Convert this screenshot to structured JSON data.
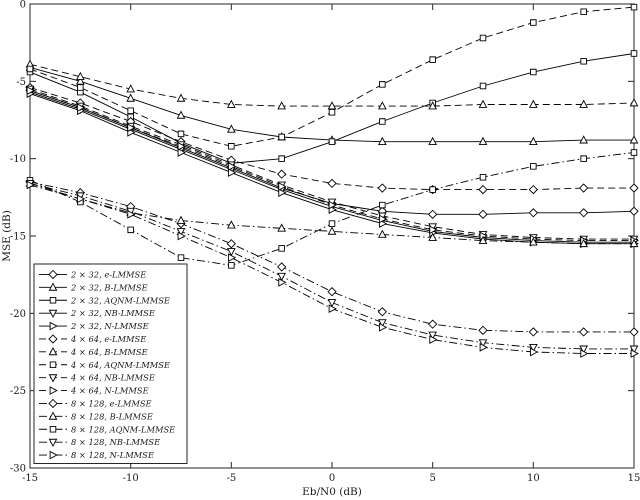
{
  "figure": {
    "background": "#ffffff",
    "axes_color": "#262626",
    "line_color": "#000000"
  },
  "chart_data": {
    "type": "line",
    "title": "",
    "xlabel": "Eb/N0 (dB)",
    "ylabel": "MSE (dB)",
    "xlim": [
      -15,
      15
    ],
    "ylim": [
      -30,
      0
    ],
    "xticks": [
      -15,
      -10,
      -5,
      0,
      5,
      10,
      15
    ],
    "yticks": [
      0,
      -5,
      -10,
      -15,
      -20,
      -25,
      -30
    ],
    "grid": false,
    "legend_position": "lower-left-inside",
    "x": [
      -15,
      -12.5,
      -10,
      -7.5,
      -5,
      -2.5,
      0,
      2.5,
      5,
      7.5,
      10,
      12.5,
      15
    ],
    "series": [
      {
        "name": "2 × 32, e-LMMSE",
        "marker": "diamond",
        "linestyle": "solid",
        "color": "#000000",
        "values": [
          -5.6,
          -6.7,
          -8.0,
          -9.3,
          -10.6,
          -11.9,
          -12.9,
          -13.4,
          -13.6,
          -13.6,
          -13.5,
          -13.5,
          -13.4
        ]
      },
      {
        "name": "2 × 32, B-LMMSE",
        "marker": "triangle-up",
        "linestyle": "solid",
        "color": "#000000",
        "values": [
          -4.1,
          -5.0,
          -6.1,
          -7.2,
          -8.1,
          -8.6,
          -8.8,
          -8.9,
          -8.9,
          -8.9,
          -8.9,
          -8.8,
          -8.8
        ]
      },
      {
        "name": "2 × 32, AQNM-LMMSE",
        "marker": "square",
        "linestyle": "solid",
        "color": "#000000",
        "values": [
          -4.4,
          -5.7,
          -7.3,
          -9.0,
          -10.3,
          -10.0,
          -8.9,
          -7.6,
          -6.4,
          -5.3,
          -4.4,
          -3.7,
          -3.2
        ]
      },
      {
        "name": "2 × 32, NB-LMMSE",
        "marker": "triangle-down",
        "linestyle": "solid",
        "color": "#000000",
        "values": [
          -5.7,
          -6.8,
          -8.1,
          -9.4,
          -10.7,
          -12.0,
          -13.1,
          -14.0,
          -14.7,
          -15.1,
          -15.3,
          -15.4,
          -15.4
        ]
      },
      {
        "name": "2 × 32, N-LMMSE",
        "marker": "triangle-right",
        "linestyle": "solid",
        "color": "#000000",
        "values": [
          -5.8,
          -6.9,
          -8.3,
          -9.6,
          -10.9,
          -12.2,
          -13.3,
          -14.2,
          -14.8,
          -15.2,
          -15.4,
          -15.5,
          -15.5
        ]
      },
      {
        "name": "4 × 64, e-LMMSE",
        "marker": "diamond",
        "linestyle": "dashed",
        "color": "#000000",
        "values": [
          -5.4,
          -6.4,
          -7.6,
          -8.9,
          -10.1,
          -11.0,
          -11.6,
          -11.9,
          -12.0,
          -12.0,
          -12.0,
          -11.9,
          -11.9
        ]
      },
      {
        "name": "4 × 64, B-LMMSE",
        "marker": "triangle-up",
        "linestyle": "dashed",
        "color": "#000000",
        "values": [
          -3.9,
          -4.7,
          -5.5,
          -6.1,
          -6.5,
          -6.6,
          -6.6,
          -6.6,
          -6.6,
          -6.5,
          -6.5,
          -6.5,
          -6.4
        ]
      },
      {
        "name": "4 × 64, AQNM-LMMSE",
        "marker": "square",
        "linestyle": "dashed",
        "color": "#000000",
        "values": [
          -4.2,
          -5.4,
          -6.9,
          -8.4,
          -9.2,
          -8.6,
          -7.0,
          -5.2,
          -3.6,
          -2.2,
          -1.2,
          -0.5,
          -0.2
        ]
      },
      {
        "name": "4 × 64, NB-LMMSE",
        "marker": "triangle-down",
        "linestyle": "dashed",
        "color": "#000000",
        "values": [
          -5.5,
          -6.6,
          -7.9,
          -9.1,
          -10.4,
          -11.7,
          -12.8,
          -13.7,
          -14.4,
          -14.9,
          -15.1,
          -15.2,
          -15.2
        ]
      },
      {
        "name": "4 × 64, N-LMMSE",
        "marker": "triangle-right",
        "linestyle": "dashed",
        "color": "#000000",
        "values": [
          -5.6,
          -6.7,
          -8.0,
          -9.2,
          -10.5,
          -11.8,
          -13.0,
          -13.9,
          -14.6,
          -15.0,
          -15.2,
          -15.3,
          -15.3
        ]
      },
      {
        "name": "8 × 128, e-LMMSE",
        "marker": "diamond",
        "linestyle": "dashdot",
        "color": "#000000",
        "values": [
          -11.5,
          -12.2,
          -13.1,
          -14.2,
          -15.5,
          -17.0,
          -18.6,
          -19.9,
          -20.7,
          -21.1,
          -21.2,
          -21.2,
          -21.2
        ]
      },
      {
        "name": "8 × 128, B-LMMSE",
        "marker": "triangle-up",
        "linestyle": "dashdot",
        "color": "#000000",
        "values": [
          -11.6,
          -12.6,
          -13.5,
          -14.0,
          -14.3,
          -14.5,
          -14.7,
          -14.9,
          -15.1,
          -15.3,
          -15.4,
          -15.5,
          -15.5
        ]
      },
      {
        "name": "8 × 128, AQNM-LMMSE",
        "marker": "square",
        "linestyle": "dashdot",
        "color": "#000000",
        "values": [
          -11.4,
          -12.8,
          -14.6,
          -16.4,
          -16.9,
          -15.8,
          -14.2,
          -13.0,
          -12.0,
          -11.2,
          -10.5,
          -10.0,
          -9.6
        ]
      },
      {
        "name": "8 × 128, NB-LMMSE",
        "marker": "triangle-down",
        "linestyle": "dashdot",
        "color": "#000000",
        "values": [
          -11.6,
          -12.4,
          -13.4,
          -14.7,
          -16.0,
          -17.6,
          -19.3,
          -20.6,
          -21.4,
          -21.9,
          -22.2,
          -22.3,
          -22.3
        ]
      },
      {
        "name": "8 × 128, N-LMMSE",
        "marker": "triangle-right",
        "linestyle": "dashdot",
        "color": "#000000",
        "values": [
          -11.7,
          -12.6,
          -13.6,
          -15.0,
          -16.4,
          -18.0,
          -19.7,
          -20.9,
          -21.7,
          -22.2,
          -22.5,
          -22.6,
          -22.6
        ]
      }
    ]
  }
}
